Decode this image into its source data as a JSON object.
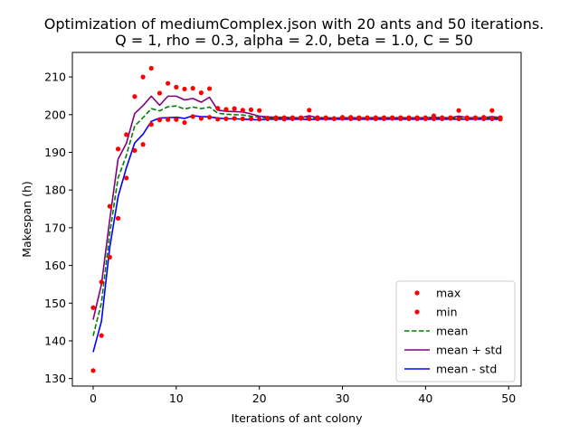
{
  "chart_data": {
    "type": "line",
    "title": "Optimization of mediumComplex.json with 20 ants and 50 iterations.",
    "subtitle": "Q = 1, rho = 0.3, alpha = 2.0, beta = 1.0, C = 50",
    "xlabel": "Iterations of ant colony",
    "ylabel": "Makespan (h)",
    "xlim": [
      -2.5,
      51.5
    ],
    "ylim": [
      128,
      216.5
    ],
    "xticks": [
      0,
      10,
      20,
      30,
      40,
      50
    ],
    "yticks": [
      130,
      140,
      150,
      160,
      170,
      180,
      190,
      200,
      210
    ],
    "grid": false,
    "legend_position": "lower right",
    "x": [
      0,
      1,
      2,
      3,
      4,
      5,
      6,
      7,
      8,
      9,
      10,
      11,
      12,
      13,
      14,
      15,
      16,
      17,
      18,
      19,
      20,
      21,
      22,
      23,
      24,
      25,
      26,
      27,
      28,
      29,
      30,
      31,
      32,
      33,
      34,
      35,
      36,
      37,
      38,
      39,
      40,
      41,
      42,
      43,
      44,
      45,
      46,
      47,
      48,
      49
    ],
    "series": [
      {
        "name": "max",
        "style": "points",
        "color": "#ff0000",
        "values": [
          148.8,
          155.6,
          175.7,
          190.9,
          194.7,
          204.8,
          210.0,
          212.3,
          205.7,
          208.3,
          207.3,
          206.8,
          207.0,
          205.8,
          206.9,
          201.7,
          201.4,
          201.6,
          201.2,
          201.3,
          201.1,
          199.1,
          199.2,
          199.2,
          199.2,
          199.2,
          201.2,
          199.2,
          199.2,
          199.0,
          199.3,
          199.3,
          199.2,
          199.2,
          199.2,
          199.2,
          199.2,
          199.2,
          199.2,
          199.2,
          199.2,
          199.7,
          199.2,
          199.2,
          201.1,
          199.2,
          199.2,
          199.3,
          201.1,
          199.2
        ]
      },
      {
        "name": "min",
        "style": "points",
        "color": "#ff0000",
        "values": [
          132.1,
          141.4,
          162.2,
          172.5,
          183.2,
          190.5,
          192.1,
          197.4,
          198.6,
          198.7,
          198.7,
          197.9,
          199.5,
          199.0,
          199.3,
          198.8,
          198.9,
          199.0,
          198.9,
          198.9,
          198.8,
          198.9,
          198.9,
          198.8,
          198.9,
          199.0,
          198.9,
          198.9,
          199.0,
          198.9,
          199.0,
          198.9,
          198.9,
          199.0,
          198.9,
          198.9,
          199.0,
          198.9,
          198.9,
          198.9,
          198.9,
          198.9,
          198.9,
          199.0,
          198.9,
          198.9,
          199.0,
          198.9,
          198.9,
          198.8
        ]
      },
      {
        "name": "mean",
        "style": "dashed",
        "color": "#008000",
        "values": [
          141.3,
          150.1,
          168.5,
          183.2,
          189.2,
          197.0,
          199.2,
          201.6,
          201.0,
          202.1,
          202.3,
          201.5,
          202.0,
          201.6,
          202.0,
          200.4,
          200.1,
          200.0,
          199.9,
          199.6,
          199.3,
          199.1,
          199.1,
          199.1,
          199.1,
          199.1,
          199.2,
          199.1,
          199.1,
          199.0,
          199.1,
          199.1,
          199.1,
          199.1,
          199.1,
          199.1,
          199.1,
          199.1,
          199.1,
          199.1,
          199.1,
          199.2,
          199.1,
          199.1,
          199.3,
          199.1,
          199.1,
          199.1,
          199.2,
          199.1
        ]
      },
      {
        "name": "mean + std",
        "style": "solid",
        "color": "#800080",
        "values": [
          145.6,
          155.0,
          172.2,
          188.2,
          192.4,
          200.3,
          202.4,
          204.9,
          202.5,
          204.9,
          204.9,
          203.9,
          204.3,
          203.3,
          204.6,
          201.2,
          200.9,
          200.8,
          200.7,
          200.2,
          199.6,
          199.4,
          199.3,
          199.3,
          199.2,
          199.2,
          199.7,
          199.2,
          199.2,
          199.1,
          199.2,
          199.2,
          199.2,
          199.2,
          199.2,
          199.2,
          199.2,
          199.2,
          199.2,
          199.2,
          199.2,
          199.3,
          199.2,
          199.2,
          199.6,
          199.2,
          199.2,
          199.2,
          199.5,
          199.2
        ]
      },
      {
        "name": "mean - std",
        "style": "solid",
        "color": "#0000ff",
        "values": [
          137.0,
          145.2,
          164.8,
          178.2,
          185.9,
          192.5,
          194.8,
          198.2,
          199.1,
          199.2,
          199.3,
          199.0,
          199.7,
          199.5,
          199.4,
          199.1,
          198.9,
          198.9,
          198.8,
          198.7,
          198.6,
          198.8,
          198.8,
          198.8,
          198.8,
          198.8,
          198.7,
          198.8,
          198.8,
          198.8,
          198.8,
          198.8,
          198.8,
          198.8,
          198.8,
          198.8,
          198.8,
          198.8,
          198.8,
          198.8,
          198.8,
          198.8,
          198.8,
          198.8,
          198.8,
          198.8,
          198.8,
          198.8,
          198.8,
          198.8
        ]
      }
    ]
  }
}
